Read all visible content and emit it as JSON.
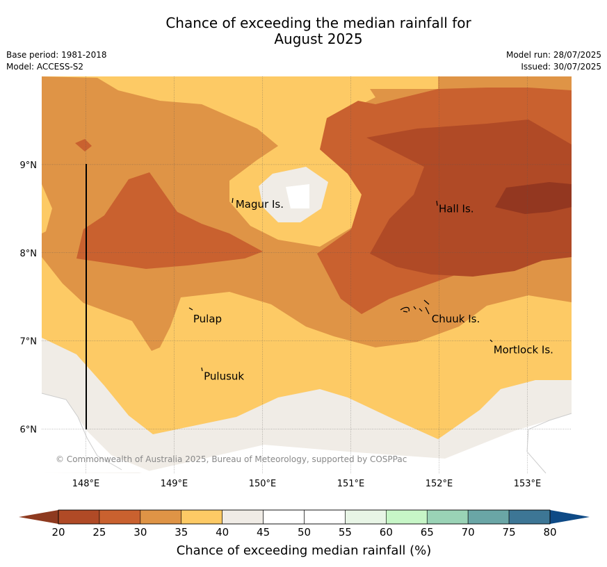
{
  "title": {
    "line1": "Chance of exceeding the median rainfall for",
    "line2": "August 2025"
  },
  "meta": {
    "base_period": "Base period: 1981-2018",
    "model": "Model: ACCESS-S2",
    "model_run": "Model run: 28/07/2025",
    "issued": "Issued: 30/07/2025"
  },
  "map": {
    "lon_range": [
      147.5,
      153.5
    ],
    "lat_range": [
      5.5,
      10
    ],
    "lon_ticks": [
      {
        "value": 148,
        "label": "148°E"
      },
      {
        "value": 149,
        "label": "149°E"
      },
      {
        "value": 150,
        "label": "150°E"
      },
      {
        "value": 151,
        "label": "151°E"
      },
      {
        "value": 152,
        "label": "152°E"
      },
      {
        "value": 153,
        "label": "153°E"
      }
    ],
    "lat_ticks": [
      {
        "value": 9,
        "label": "9°N"
      },
      {
        "value": 8,
        "label": "8°N"
      },
      {
        "value": 7,
        "label": "7°N"
      },
      {
        "value": 6,
        "label": "6°N"
      }
    ],
    "places": [
      {
        "name": "Magur Is.",
        "lon": 149.68,
        "lat": 8.55
      },
      {
        "name": "Hall Is.",
        "lon": 151.98,
        "lat": 8.5
      },
      {
        "name": "Pulap",
        "lon": 149.2,
        "lat": 7.25
      },
      {
        "name": "Chuuk Is.",
        "lon": 151.9,
        "lat": 7.25
      },
      {
        "name": "Mortlock Is.",
        "lon": 152.6,
        "lat": 6.9
      },
      {
        "name": "Pulusuk",
        "lon": 149.32,
        "lat": 6.6
      }
    ],
    "copyright": "© Commonwealth of Australia 2025, Bureau of Meteorology, supported by COSPPac"
  },
  "colorbar": {
    "ticks": [
      "20",
      "25",
      "30",
      "35",
      "40",
      "45",
      "50",
      "55",
      "60",
      "65",
      "70",
      "75",
      "80"
    ],
    "under_color": "#8e3a1f",
    "over_color": "#0e4a86",
    "colors": [
      "#b04a26",
      "#c9612f",
      "#df9446",
      "#fdca65",
      "#f0ece6",
      "#ffffff",
      "#ffffff",
      "#e8f5e6",
      "#c7f6c7",
      "#9ad3b6",
      "#6aa6a6",
      "#3d7695"
    ],
    "label": "Chance of exceeding median rainfall (%)"
  },
  "legend_colors": {
    "c20": "#b04a26",
    "c25": "#c9612f",
    "c30": "#df9446",
    "c35": "#fdca65",
    "c40": "#f0ece6",
    "c15": "#933720"
  }
}
